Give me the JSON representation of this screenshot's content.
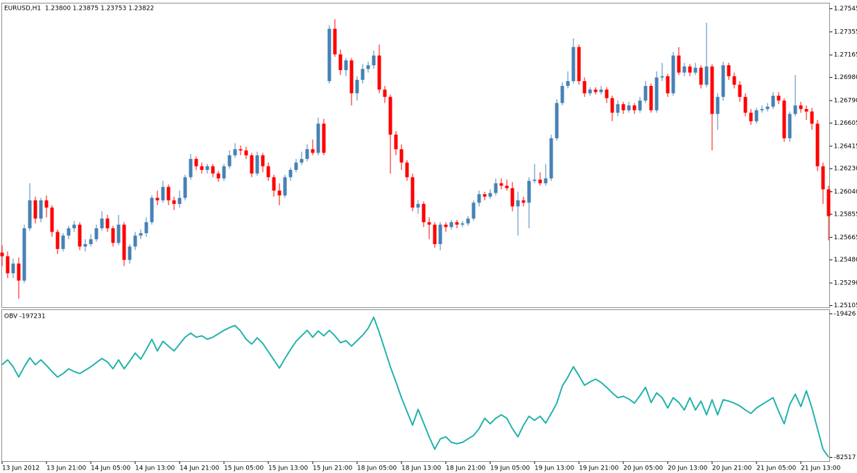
{
  "chart_data": [
    {
      "type": "candlestick",
      "title": "EURUSD,H1  1.23800 1.23875 1.23753 1.23822",
      "up_color": "#4682b4",
      "down_color": "#ff0000",
      "categories": [
        "13 Jun 2012",
        null,
        null,
        null,
        null,
        null,
        null,
        null,
        "13 Jun 21:00",
        null,
        null,
        null,
        null,
        null,
        null,
        null,
        "14 Jun 05:00",
        null,
        null,
        null,
        null,
        null,
        null,
        null,
        "14 Jun 13:00",
        null,
        null,
        null,
        null,
        null,
        null,
        null,
        "14 Jun 21:00",
        null,
        null,
        null,
        null,
        null,
        null,
        null,
        "15 Jun 05:00",
        null,
        null,
        null,
        null,
        null,
        null,
        null,
        "15 Jun 13:00",
        null,
        null,
        null,
        null,
        null,
        null,
        null,
        "15 Jun 21:00",
        null,
        null,
        null,
        null,
        null,
        null,
        null,
        "18 Jun 05:00",
        null,
        null,
        null,
        null,
        null,
        null,
        null,
        "18 Jun 13:00",
        null,
        null,
        null,
        null,
        null,
        null,
        null,
        "18 Jun 21:00",
        null,
        null,
        null,
        null,
        null,
        null,
        null,
        "19 Jun 05:00",
        null,
        null,
        null,
        null,
        null,
        null,
        null,
        "19 Jun 13:00",
        null,
        null,
        null,
        null,
        null,
        null,
        null,
        "19 Jun 21:00",
        null,
        null,
        null,
        null,
        null,
        null,
        null,
        "20 Jun 05:00",
        null,
        null,
        null,
        null,
        null,
        null,
        null,
        "20 Jun 13:00",
        null,
        null,
        null,
        null,
        null,
        null,
        null,
        "20 Jun 21:00",
        null,
        null,
        null,
        null,
        null,
        null,
        null,
        "21 Jun 05:00",
        null,
        null,
        null,
        null,
        null,
        null,
        null,
        "21 Jun 13:00",
        null,
        null,
        null,
        null,
        null
      ],
      "open": [
        1.2554,
        1.2551,
        1.2537,
        1.2545,
        1.2531,
        1.2574,
        1.2597,
        1.2582,
        1.2597,
        1.2591,
        1.2571,
        1.2557,
        1.2568,
        1.2574,
        1.2577,
        1.2559,
        1.2561,
        1.2565,
        1.2574,
        1.2582,
        1.2574,
        1.2562,
        1.2577,
        1.2548,
        1.2559,
        1.2568,
        1.257,
        1.2579,
        1.2599,
        1.2597,
        1.2608,
        1.2597,
        1.2594,
        1.2599,
        1.2616,
        1.2631,
        1.2625,
        1.2622,
        1.2625,
        1.2619,
        1.2615,
        1.2625,
        1.2634,
        1.2639,
        1.2638,
        1.2634,
        1.2619,
        1.2634,
        1.2625,
        1.2616,
        1.2605,
        1.2601,
        1.2616,
        1.2622,
        1.2628,
        1.2631,
        1.2639,
        1.2636,
        1.266,
        1.2695,
        1.2738,
        1.2717,
        1.2704,
        1.2712,
        1.2685,
        1.2696,
        1.2705,
        1.2708,
        1.2716,
        1.2688,
        1.2682,
        1.2651,
        1.2639,
        1.2628,
        1.2616,
        1.2591,
        1.2594,
        1.2579,
        1.2577,
        1.2561,
        1.2577,
        1.2575,
        1.2579,
        1.2577,
        1.2578,
        1.2582,
        1.2595,
        1.2602,
        1.26,
        1.2603,
        1.2611,
        1.2609,
        1.2607,
        1.2592,
        1.2597,
        1.2595,
        1.2613,
        1.2614,
        1.2611,
        1.2615,
        1.2648,
        1.2677,
        1.2691,
        1.2695,
        1.2723,
        1.2695,
        1.2685,
        1.2688,
        1.2686,
        1.2688,
        1.2681,
        1.2669,
        1.2676,
        1.2671,
        1.2675,
        1.2671,
        1.2679,
        1.2691,
        1.2671,
        1.2698,
        1.2699,
        1.2685,
        1.2716,
        1.2702,
        1.2707,
        1.2702,
        1.2706,
        1.2692,
        1.2707,
        1.2668,
        1.2682,
        1.2708,
        1.2699,
        1.2692,
        1.2682,
        1.2669,
        1.2662,
        1.2671,
        1.2672,
        1.2674,
        1.2683,
        1.2679,
        1.2648,
        1.2668,
        1.2675,
        1.2672,
        1.267,
        1.266,
        1.2625,
        1.2606
      ],
      "high": [
        1.256,
        1.2555,
        1.2549,
        1.255,
        1.2577,
        1.2611,
        1.26,
        1.2599,
        1.2601,
        1.2593,
        1.2573,
        1.257,
        1.2576,
        1.258,
        1.2579,
        1.2565,
        1.2569,
        1.2577,
        1.2588,
        1.2585,
        1.2576,
        1.2585,
        1.2579,
        1.2561,
        1.2571,
        1.2573,
        1.2583,
        1.2601,
        1.2605,
        1.2613,
        1.261,
        1.26,
        1.2605,
        1.2618,
        1.2635,
        1.2633,
        1.2628,
        1.2627,
        1.2627,
        1.2621,
        1.2627,
        1.2638,
        1.2644,
        1.2642,
        1.2641,
        1.2636,
        1.2637,
        1.2636,
        1.2628,
        1.2618,
        1.2611,
        1.2618,
        1.2624,
        1.2631,
        1.2637,
        1.2643,
        1.2647,
        1.2665,
        1.2664,
        1.2741,
        1.2746,
        1.2721,
        1.2714,
        1.2714,
        1.2699,
        1.2709,
        1.2711,
        1.272,
        1.2725,
        1.2691,
        1.2684,
        1.2654,
        1.2643,
        1.263,
        1.2619,
        1.2597,
        1.2596,
        1.2583,
        1.2579,
        1.2579,
        1.2579,
        1.2581,
        1.2581,
        1.258,
        1.2584,
        1.2597,
        1.2605,
        1.2604,
        1.2606,
        1.2615,
        1.2615,
        1.2614,
        1.2612,
        1.2604,
        1.26,
        1.2616,
        1.2627,
        1.262,
        1.2627,
        1.2651,
        1.268,
        1.2694,
        1.2703,
        1.273,
        1.2725,
        1.2698,
        1.269,
        1.269,
        1.2691,
        1.269,
        1.2683,
        1.2679,
        1.2678,
        1.2678,
        1.2677,
        1.2682,
        1.2695,
        1.2693,
        1.2703,
        1.271,
        1.2701,
        1.2719,
        1.2723,
        1.271,
        1.2709,
        1.271,
        1.2708,
        1.2743,
        1.2709,
        1.2685,
        1.2711,
        1.271,
        1.2702,
        1.2695,
        1.2685,
        1.2672,
        1.2673,
        1.2675,
        1.2677,
        1.2686,
        1.2686,
        1.2681,
        1.267,
        1.27,
        1.2678,
        1.2675,
        1.2673,
        1.2663,
        1.2628,
        1.2609
      ],
      "low": [
        1.2543,
        1.2533,
        1.2533,
        1.2516,
        1.2529,
        1.2572,
        1.2578,
        1.2579,
        1.2583,
        1.2567,
        1.2553,
        1.2555,
        1.2565,
        1.2571,
        1.2556,
        1.2555,
        1.2559,
        1.2563,
        1.2572,
        1.2571,
        1.2559,
        1.256,
        1.2543,
        1.2545,
        1.2556,
        1.2565,
        1.2567,
        1.2577,
        1.2593,
        1.2595,
        1.2593,
        1.2589,
        1.2591,
        1.2597,
        1.2614,
        1.2622,
        1.2619,
        1.2619,
        1.2616,
        1.2612,
        1.2613,
        1.2623,
        1.2632,
        1.2634,
        1.2631,
        1.2616,
        1.2617,
        1.262,
        1.2613,
        1.26,
        1.2593,
        1.2599,
        1.2613,
        1.262,
        1.2626,
        1.2629,
        1.2634,
        1.2634,
        1.2634,
        1.2693,
        1.2715,
        1.27,
        1.2699,
        1.2675,
        1.2679,
        1.2693,
        1.2702,
        1.2705,
        1.2685,
        1.2677,
        1.2619,
        1.2634,
        1.2622,
        1.2613,
        1.2588,
        1.2586,
        1.2575,
        1.2565,
        1.2558,
        1.2556,
        1.2571,
        1.2573,
        1.2574,
        1.2575,
        1.2576,
        1.258,
        1.2592,
        1.2597,
        1.2598,
        1.2601,
        1.2606,
        1.2605,
        1.2588,
        1.2568,
        1.2592,
        1.2574,
        1.2611,
        1.2609,
        1.2609,
        1.2613,
        1.2646,
        1.2675,
        1.2689,
        1.2693,
        1.2692,
        1.2682,
        1.2683,
        1.2684,
        1.2684,
        1.2677,
        1.2662,
        1.2666,
        1.2668,
        1.2669,
        1.2668,
        1.2669,
        1.2677,
        1.2669,
        1.2669,
        1.2695,
        1.2682,
        1.2683,
        1.27,
        1.2699,
        1.2699,
        1.27,
        1.2689,
        1.269,
        1.2638,
        1.2655,
        1.2679,
        1.2696,
        1.2689,
        1.2678,
        1.2666,
        1.2659,
        1.266,
        1.2669,
        1.267,
        1.2672,
        1.2676,
        1.2645,
        1.2645,
        1.2666,
        1.2669,
        1.2663,
        1.2655,
        1.2621,
        1.2594,
        1.2564
      ],
      "close": [
        1.2551,
        1.2537,
        1.2545,
        1.2531,
        1.2574,
        1.2597,
        1.2582,
        1.2597,
        1.2591,
        1.2571,
        1.2557,
        1.2568,
        1.2574,
        1.2577,
        1.2559,
        1.2561,
        1.2565,
        1.2574,
        1.2582,
        1.2574,
        1.2562,
        1.2577,
        1.2548,
        1.2559,
        1.2568,
        1.257,
        1.2579,
        1.2599,
        1.2597,
        1.2608,
        1.2597,
        1.2594,
        1.2599,
        1.2616,
        1.2631,
        1.2625,
        1.2622,
        1.2625,
        1.2619,
        1.2615,
        1.2625,
        1.2634,
        1.2639,
        1.2638,
        1.2634,
        1.2619,
        1.2634,
        1.2625,
        1.2616,
        1.2605,
        1.2601,
        1.2616,
        1.2622,
        1.2628,
        1.2631,
        1.2639,
        1.2636,
        1.266,
        1.2636,
        1.2738,
        1.2717,
        1.2704,
        1.2712,
        1.2685,
        1.2696,
        1.2705,
        1.2708,
        1.2716,
        1.2688,
        1.2682,
        1.2651,
        1.2639,
        1.2628,
        1.2616,
        1.2591,
        1.2594,
        1.2579,
        1.2577,
        1.2561,
        1.2577,
        1.2575,
        1.2579,
        1.2577,
        1.2578,
        1.2582,
        1.2595,
        1.2602,
        1.26,
        1.2603,
        1.2611,
        1.2609,
        1.2607,
        1.2592,
        1.2597,
        1.2595,
        1.2613,
        1.2614,
        1.2611,
        1.2615,
        1.2648,
        1.2677,
        1.2691,
        1.2695,
        1.2723,
        1.2695,
        1.2685,
        1.2688,
        1.2686,
        1.2688,
        1.2681,
        1.2669,
        1.2676,
        1.2671,
        1.2675,
        1.2671,
        1.2679,
        1.2691,
        1.2671,
        1.2698,
        1.2699,
        1.2685,
        1.2716,
        1.2702,
        1.2707,
        1.2702,
        1.2706,
        1.2692,
        1.2707,
        1.2668,
        1.2682,
        1.2708,
        1.2699,
        1.2692,
        1.2682,
        1.2669,
        1.2662,
        1.2671,
        1.2672,
        1.2674,
        1.2683,
        1.2679,
        1.2648,
        1.2668,
        1.2675,
        1.2672,
        1.267,
        1.266,
        1.2625,
        1.2606,
        1.2584
      ],
      "ylim": [
        1.25088,
        1.27591
      ],
      "yticks": [
        1.27545,
        1.27355,
        1.27165,
        {
          "value": 1.2698,
          "label": "1.26980"
        },
        {
          "value": 1.2679,
          "label": "1.26790"
        },
        1.26605,
        1.26415,
        {
          "value": 1.2623,
          "label": "1.26230"
        },
        {
          "value": 1.2604,
          "label": "1.26040"
        },
        1.25855,
        1.25665,
        {
          "value": 1.2548,
          "label": "1.25480"
        },
        {
          "value": 1.2529,
          "label": "1.25290"
        },
        1.25105
      ]
    },
    {
      "type": "line",
      "title": "OBV -197231",
      "color": "#20b2aa",
      "values": [
        -41774,
        -39660,
        -42680,
        -47210,
        -42680,
        -38754,
        -41774,
        -39660,
        -42076,
        -44794,
        -47210,
        -45700,
        -43586,
        -44794,
        -45700,
        -44190,
        -42680,
        -40868,
        -39056,
        -40566,
        -43586,
        -39660,
        -43586,
        -40264,
        -36640,
        -39358,
        -35130,
        -30600,
        -35734,
        -31506,
        -33620,
        -35734,
        -32714,
        -29694,
        -27882,
        -29694,
        -29090,
        -30600,
        -29694,
        -28184,
        -26674,
        -25466,
        -24560,
        -26976,
        -30600,
        -32714,
        -29996,
        -32412,
        -36036,
        -39660,
        -43284,
        -39056,
        -35130,
        -31506,
        -29090,
        -26674,
        -29694,
        -26976,
        -29090,
        -26674,
        -29090,
        -32110,
        -31204,
        -33620,
        -31204,
        -28788,
        -25768,
        -20936,
        -27580,
        -35130,
        -42680,
        -49324,
        -56270,
        -62310,
        -68350,
        -61404,
        -67444,
        -73484,
        -78920,
        -74390,
        -73484,
        -75900,
        -76504,
        -75900,
        -74390,
        -72880,
        -69860,
        -65330,
        -67746,
        -65330,
        -63820,
        -65330,
        -69860,
        -73484,
        -68350,
        -64424,
        -66236,
        -64424,
        -67444,
        -63216,
        -58686,
        -51136,
        -47210,
        -42680,
        -46606,
        -50834,
        -49324,
        -48116,
        -49626,
        -51740,
        -54156,
        -56270,
        -55666,
        -56874,
        -58686,
        -55364,
        -51740,
        -58384,
        -54156,
        -56270,
        -60800,
        -56270,
        -58384,
        -61706,
        -56270,
        -61706,
        -57780,
        -63820,
        -57176,
        -63820,
        -57176,
        -57780,
        -58686,
        -59894,
        -61706,
        -63216,
        -60800,
        -59290,
        -57780,
        -56270,
        -62310,
        -67746,
        -59290,
        -54760,
        -60196,
        -53250,
        -60800,
        -69860,
        -78920,
        -82400
      ],
      "ylim": [
        -84353,
        -17590
      ],
      "yticks": [
        -19426,
        -82517
      ]
    }
  ]
}
